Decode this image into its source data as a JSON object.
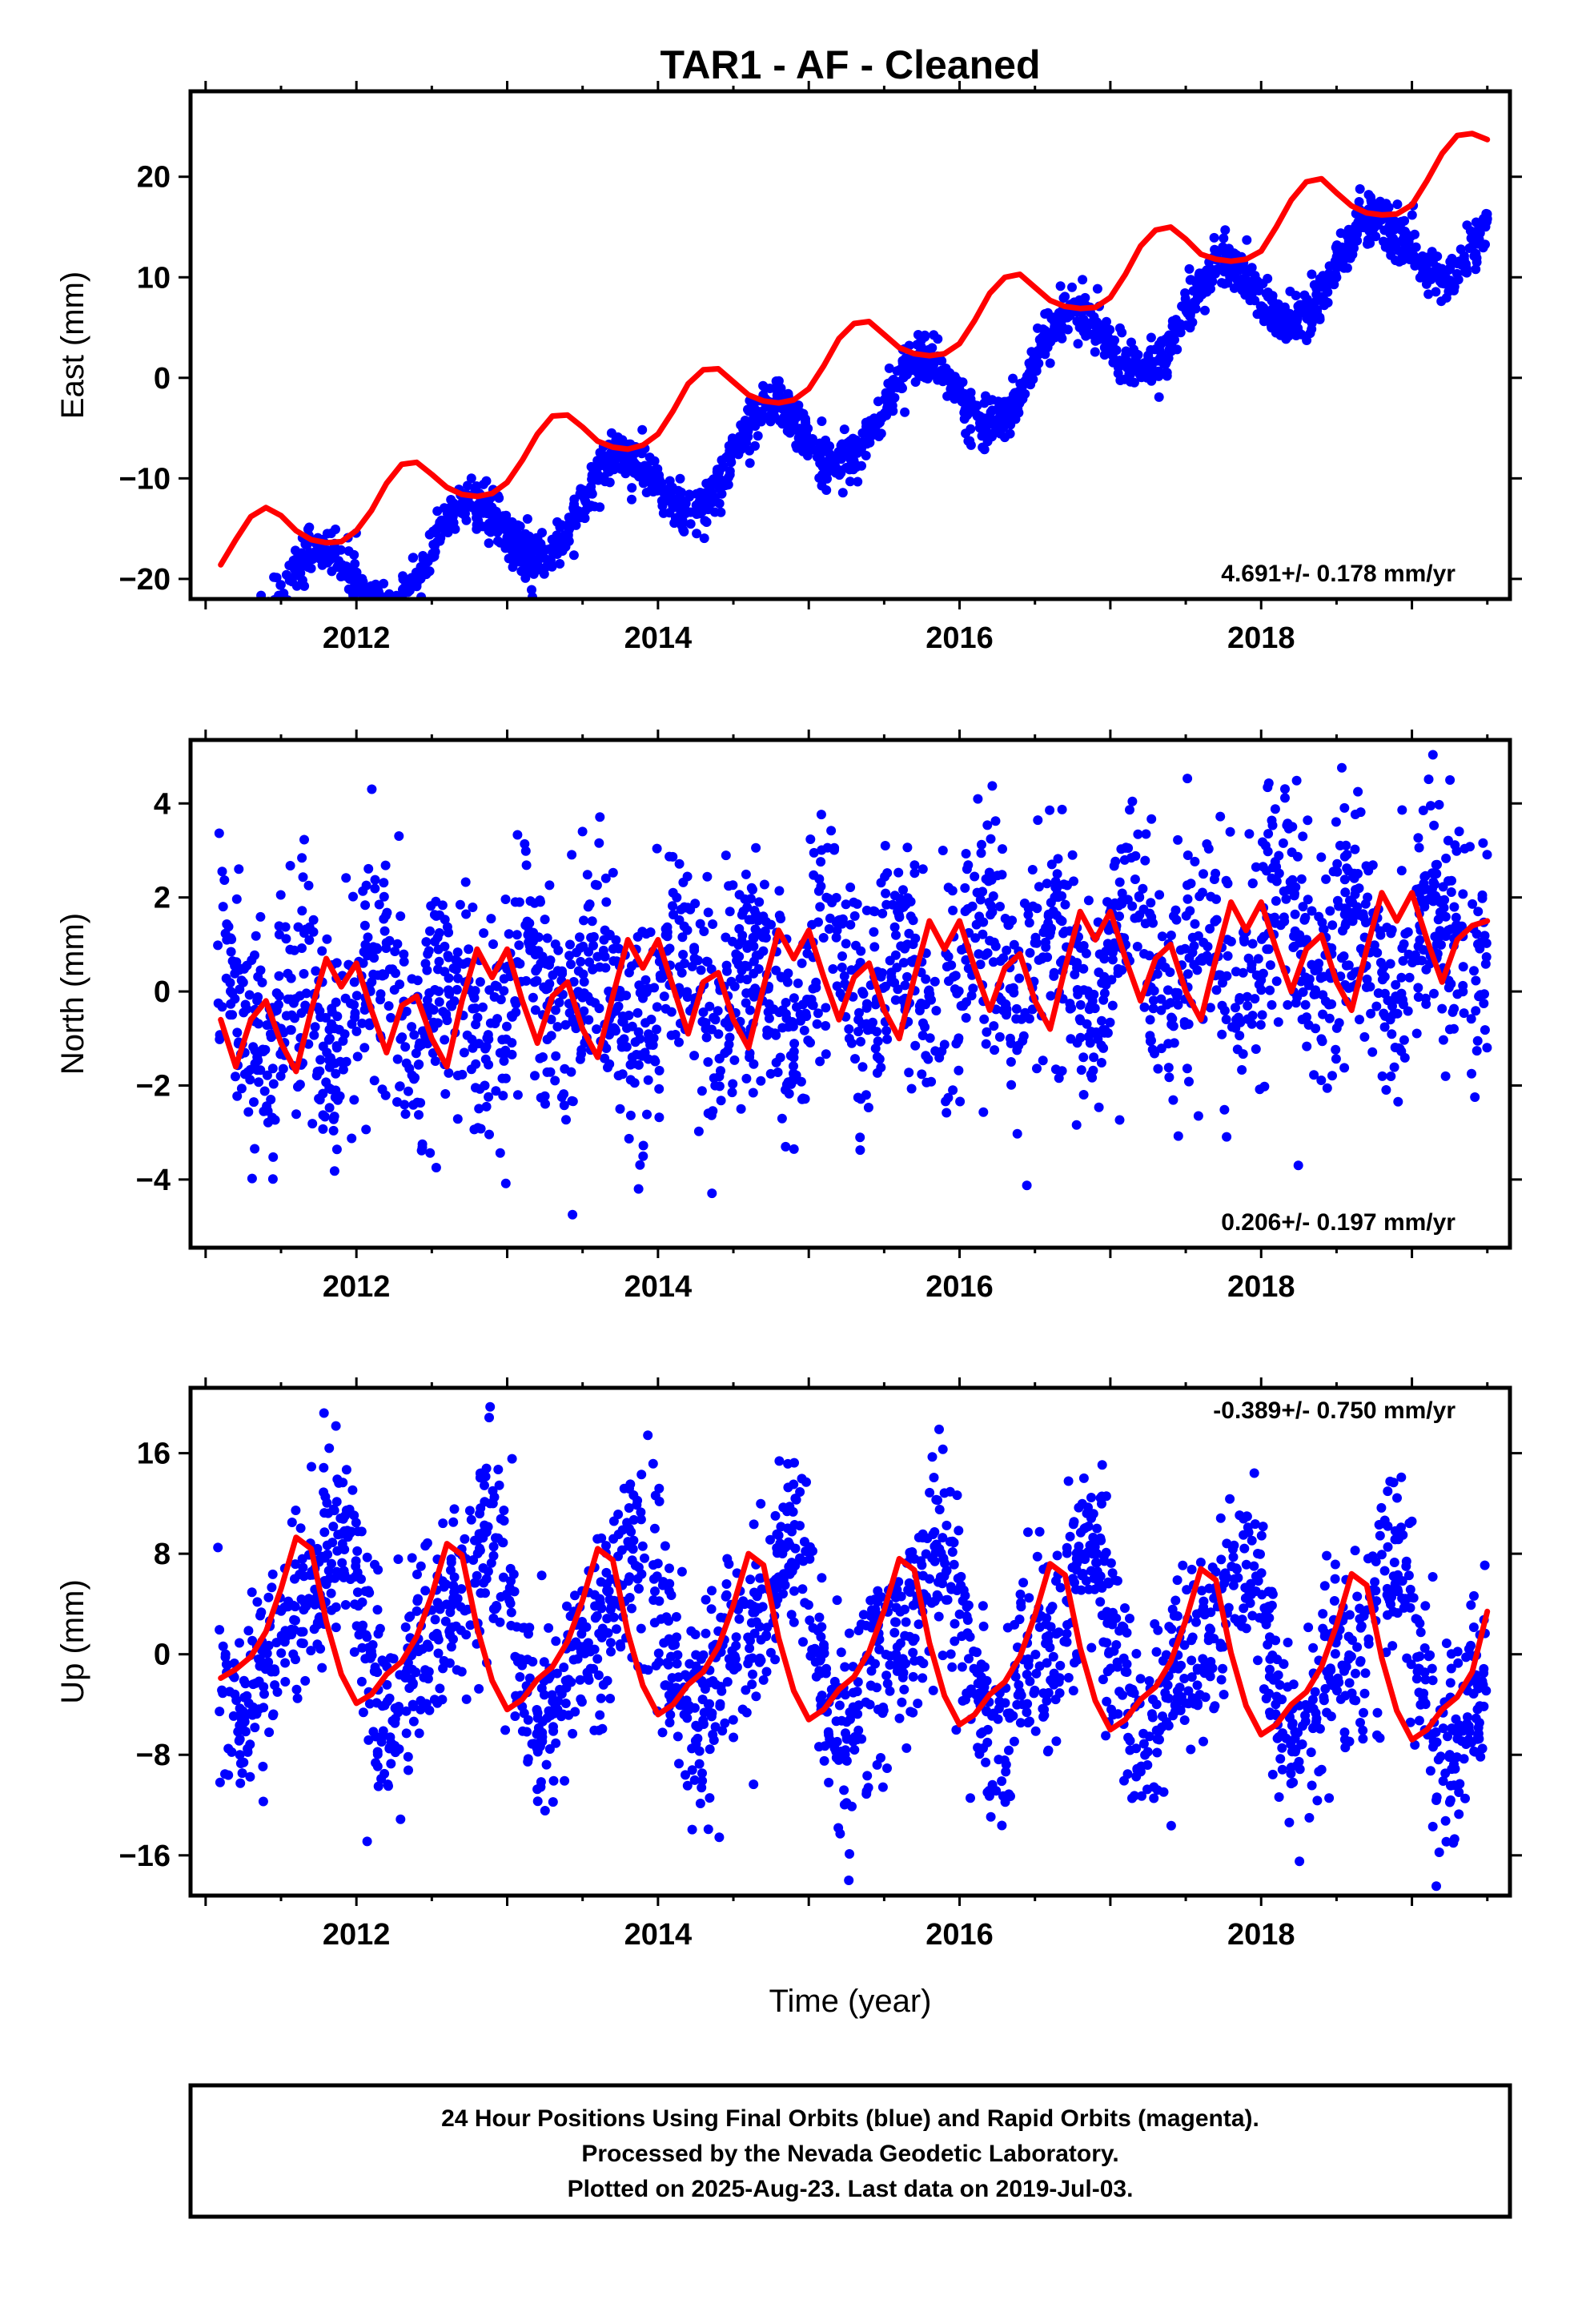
{
  "title": "TAR1  - AF - Cleaned",
  "x_axis_label": "Time (year)",
  "footer": {
    "line1": "24 Hour Positions Using Final Orbits (blue) and Rapid Orbits (magenta).",
    "line2": "Processed by the Nevada Geodetic Laboratory.",
    "line3": "Plotted on 2025-Aug-23. Last data on 2019-Jul-03."
  },
  "colors": {
    "observations": "#0000ff",
    "model": "#ff0000",
    "frame": "#000000"
  },
  "chart_data": [
    {
      "type": "scatter",
      "component": "East",
      "ylabel": "East (mm)",
      "xlabel": "",
      "xlim": [
        2010.9,
        2019.65
      ],
      "ylim": [
        -22,
        28.5
      ],
      "xticks": [
        2012,
        2014,
        2016,
        2018
      ],
      "yticks": [
        -20,
        -10,
        0,
        10,
        20
      ],
      "rate_label": "4.691+/- 0.178 mm/yr",
      "rate_position": "bottom-right",
      "series": [
        {
          "name": "24 Hour Positions (Final Orbits)",
          "style": "points",
          "color": "#0000ff",
          "model": {
            "start": 2011.08,
            "end": 2019.5,
            "intercept": -15.1,
            "rate": 4.691,
            "annual": [
              [
                -0.55,
                0.0
              ],
              [
                -3.5,
                1.02
              ]
            ],
            "semiannual": [
              [
                0.0,
                0.0
              ]
            ],
            "scatter": 1.2
          }
        },
        {
          "name": "Model fit",
          "style": "line",
          "color": "#ff0000",
          "x": [
            2011.1,
            2011.2,
            2011.3,
            2011.4,
            2011.5,
            2011.6,
            2011.7,
            2011.8,
            2011.9,
            2012.0,
            2012.1,
            2012.2,
            2012.3,
            2012.4,
            2012.5,
            2012.6,
            2012.7,
            2012.8,
            2012.9,
            2013.0,
            2013.1,
            2013.2,
            2013.3,
            2013.4,
            2013.5,
            2013.6,
            2013.7,
            2013.8,
            2013.9,
            2014.0,
            2014.1,
            2014.2,
            2014.3,
            2014.4,
            2014.5,
            2014.6,
            2014.7,
            2014.8,
            2014.9,
            2015.0,
            2015.1,
            2015.2,
            2015.3,
            2015.4,
            2015.5,
            2015.6,
            2015.7,
            2015.8,
            2015.9,
            2016.0,
            2016.1,
            2016.2,
            2016.3,
            2016.4,
            2016.5,
            2016.6,
            2016.7,
            2016.8,
            2016.9,
            2017.0,
            2017.1,
            2017.2,
            2017.3,
            2017.4,
            2017.5,
            2017.6,
            2017.7,
            2017.8,
            2017.9,
            2018.0,
            2018.1,
            2018.2,
            2018.3,
            2018.4,
            2018.5,
            2018.6,
            2018.7,
            2018.8,
            2018.9,
            2019.0,
            2019.1,
            2019.2,
            2019.3,
            2019.4,
            2019.5
          ],
          "y": [
            -18.6,
            -16.1,
            -13.8,
            -12.9,
            -13.7,
            -15.2,
            -16.1,
            -16.4,
            -16.3,
            -15.2,
            -13.2,
            -10.5,
            -8.6,
            -8.4,
            -9.6,
            -10.9,
            -11.6,
            -11.8,
            -11.5,
            -10.4,
            -8.2,
            -5.6,
            -3.8,
            -3.7,
            -4.9,
            -6.3,
            -6.9,
            -7.1,
            -6.7,
            -5.6,
            -3.3,
            -0.6,
            0.8,
            0.9,
            -0.4,
            -1.7,
            -2.3,
            -2.5,
            -2.2,
            -1.1,
            1.2,
            3.9,
            5.4,
            5.6,
            4.3,
            3.0,
            2.4,
            2.2,
            2.4,
            3.4,
            5.7,
            8.4,
            10.0,
            10.3,
            9.0,
            7.7,
            7.1,
            6.9,
            7.0,
            8.0,
            10.3,
            13.1,
            14.7,
            15.0,
            13.8,
            12.3,
            11.8,
            11.6,
            11.8,
            12.6,
            15.0,
            17.7,
            19.5,
            19.8,
            18.4,
            17.1,
            16.4,
            16.2,
            16.3,
            17.2,
            19.6,
            22.3,
            24.1,
            24.3,
            23.7
          ]
        }
      ]
    },
    {
      "type": "scatter",
      "component": "North",
      "ylabel": "North (mm)",
      "xlabel": "",
      "xlim": [
        2010.9,
        2019.65
      ],
      "ylim": [
        -5.45,
        5.35
      ],
      "xticks": [
        2012,
        2014,
        2016,
        2018
      ],
      "yticks": [
        -4,
        -2,
        0,
        2,
        4
      ],
      "rate_label": "0.206+/- 0.197 mm/yr",
      "rate_position": "bottom-right",
      "series": [
        {
          "name": "24 Hour Positions (Final Orbits)",
          "style": "points",
          "color": "#0000ff",
          "model": {
            "start": 2011.08,
            "end": 2019.5,
            "intercept": -0.2,
            "rate": 0.206,
            "annual": [
              [
                0.3,
                0.0
              ]
            ],
            "semiannual": [
              [
                0.9,
                0.0
              ]
            ],
            "scatter": 1.25
          }
        },
        {
          "name": "Model fit",
          "style": "line",
          "color": "#ff0000",
          "x": [
            2011.1,
            2011.2,
            2011.3,
            2011.4,
            2011.5,
            2011.6,
            2011.7,
            2011.8,
            2011.9,
            2012.0,
            2012.1,
            2012.2,
            2012.3,
            2012.4,
            2012.5,
            2012.6,
            2012.7,
            2012.8,
            2012.9,
            2013.0,
            2013.1,
            2013.2,
            2013.3,
            2013.4,
            2013.5,
            2013.6,
            2013.7,
            2013.8,
            2013.9,
            2014.0,
            2014.1,
            2014.2,
            2014.3,
            2014.4,
            2014.5,
            2014.6,
            2014.7,
            2014.8,
            2014.9,
            2015.0,
            2015.1,
            2015.2,
            2015.3,
            2015.4,
            2015.5,
            2015.6,
            2015.7,
            2015.8,
            2015.9,
            2016.0,
            2016.1,
            2016.2,
            2016.3,
            2016.4,
            2016.5,
            2016.6,
            2016.7,
            2016.8,
            2016.9,
            2017.0,
            2017.1,
            2017.2,
            2017.3,
            2017.4,
            2017.5,
            2017.6,
            2017.7,
            2017.8,
            2017.9,
            2018.0,
            2018.1,
            2018.2,
            2018.3,
            2018.4,
            2018.5,
            2018.6,
            2018.7,
            2018.8,
            2018.9,
            2019.0,
            2019.1,
            2019.2,
            2019.3,
            2019.4,
            2019.5
          ],
          "y": [
            -0.6,
            -1.6,
            -0.6,
            -0.2,
            -1.1,
            -1.7,
            -0.4,
            0.7,
            0.1,
            0.6,
            -0.4,
            -1.3,
            -0.3,
            -0.1,
            -1.0,
            -1.6,
            -0.2,
            0.9,
            0.3,
            0.9,
            -0.2,
            -1.1,
            -0.1,
            0.2,
            -0.8,
            -1.4,
            -0.1,
            1.1,
            0.5,
            1.1,
            0.1,
            -0.9,
            0.2,
            0.4,
            -0.6,
            -1.2,
            0.1,
            1.3,
            0.7,
            1.3,
            0.3,
            -0.6,
            0.3,
            0.6,
            -0.4,
            -1.0,
            0.3,
            1.5,
            0.9,
            1.5,
            0.5,
            -0.4,
            0.5,
            0.8,
            -0.2,
            -0.8,
            0.5,
            1.7,
            1.1,
            1.7,
            0.7,
            -0.2,
            0.7,
            1.0,
            0.0,
            -0.6,
            0.7,
            1.9,
            1.3,
            1.9,
            0.9,
            0.0,
            0.9,
            1.2,
            0.2,
            -0.4,
            0.9,
            2.1,
            1.5,
            2.1,
            1.1,
            0.2,
            1.1,
            1.4,
            1.5
          ]
        }
      ]
    },
    {
      "type": "scatter",
      "component": "Up",
      "ylabel": "Up (mm)",
      "xlabel": "Time (year)",
      "xlim": [
        2010.9,
        2019.65
      ],
      "ylim": [
        -19.2,
        21.2
      ],
      "xticks": [
        2012,
        2014,
        2016,
        2018
      ],
      "yticks": [
        -16,
        -8,
        0,
        8,
        16
      ],
      "rate_label": "-0.389+/- 0.750 mm/yr",
      "rate_position": "top-right",
      "series": [
        {
          "name": "24 Hour Positions (Final Orbits)",
          "style": "points",
          "color": "#0000ff",
          "model": {
            "start": 2011.08,
            "end": 2019.5,
            "intercept": 1.8,
            "rate": -0.389,
            "annual": [
              [
                6.0,
                -0.55
              ]
            ],
            "semiannual": [
              [
                2.5,
                2.2
              ]
            ],
            "scatter": 4.0
          }
        },
        {
          "name": "Model fit",
          "style": "line",
          "color": "#ff0000",
          "x": [
            2011.1,
            2011.2,
            2011.3,
            2011.4,
            2011.5,
            2011.6,
            2011.7,
            2011.8,
            2011.9,
            2012.0,
            2012.1,
            2012.2,
            2012.3,
            2012.4,
            2012.5,
            2012.6,
            2012.7,
            2012.8,
            2012.9,
            2013.0,
            2013.1,
            2013.2,
            2013.3,
            2013.4,
            2013.5,
            2013.6,
            2013.7,
            2013.8,
            2013.9,
            2014.0,
            2014.1,
            2014.2,
            2014.3,
            2014.4,
            2014.5,
            2014.6,
            2014.7,
            2014.8,
            2014.9,
            2015.0,
            2015.1,
            2015.2,
            2015.3,
            2015.4,
            2015.5,
            2015.6,
            2015.7,
            2015.8,
            2015.9,
            2016.0,
            2016.1,
            2016.2,
            2016.3,
            2016.4,
            2016.5,
            2016.6,
            2016.7,
            2016.8,
            2016.9,
            2017.0,
            2017.1,
            2017.2,
            2017.3,
            2017.4,
            2017.5,
            2017.6,
            2017.7,
            2017.8,
            2017.9,
            2018.0,
            2018.1,
            2018.2,
            2018.3,
            2018.4,
            2018.5,
            2018.6,
            2018.7,
            2018.8,
            2018.9,
            2019.0,
            2019.1,
            2019.2,
            2019.3,
            2019.4,
            2019.5
          ],
          "y": [
            -1.9,
            -1.2,
            -0.2,
            1.8,
            5.2,
            9.3,
            8.4,
            2.6,
            -1.6,
            -3.9,
            -3.2,
            -1.6,
            -0.6,
            1.4,
            4.7,
            8.8,
            7.9,
            2.1,
            -2.1,
            -4.4,
            -3.6,
            -2.0,
            -1.0,
            1.0,
            4.3,
            8.4,
            7.5,
            1.7,
            -2.5,
            -4.8,
            -4.0,
            -2.4,
            -1.4,
            0.6,
            3.9,
            8.0,
            7.1,
            1.3,
            -2.9,
            -5.2,
            -4.4,
            -2.8,
            -1.8,
            0.2,
            3.5,
            7.6,
            6.7,
            0.9,
            -3.3,
            -5.6,
            -4.8,
            -3.2,
            -2.2,
            -0.2,
            3.1,
            7.2,
            6.3,
            0.5,
            -3.7,
            -6.0,
            -5.2,
            -3.6,
            -2.6,
            -0.6,
            2.7,
            6.8,
            5.9,
            0.1,
            -4.1,
            -6.4,
            -5.6,
            -4.0,
            -3.0,
            -1.0,
            2.3,
            6.4,
            5.5,
            -0.3,
            -4.5,
            -6.8,
            -6.0,
            -4.4,
            -3.4,
            -1.4,
            3.4
          ]
        }
      ]
    }
  ]
}
